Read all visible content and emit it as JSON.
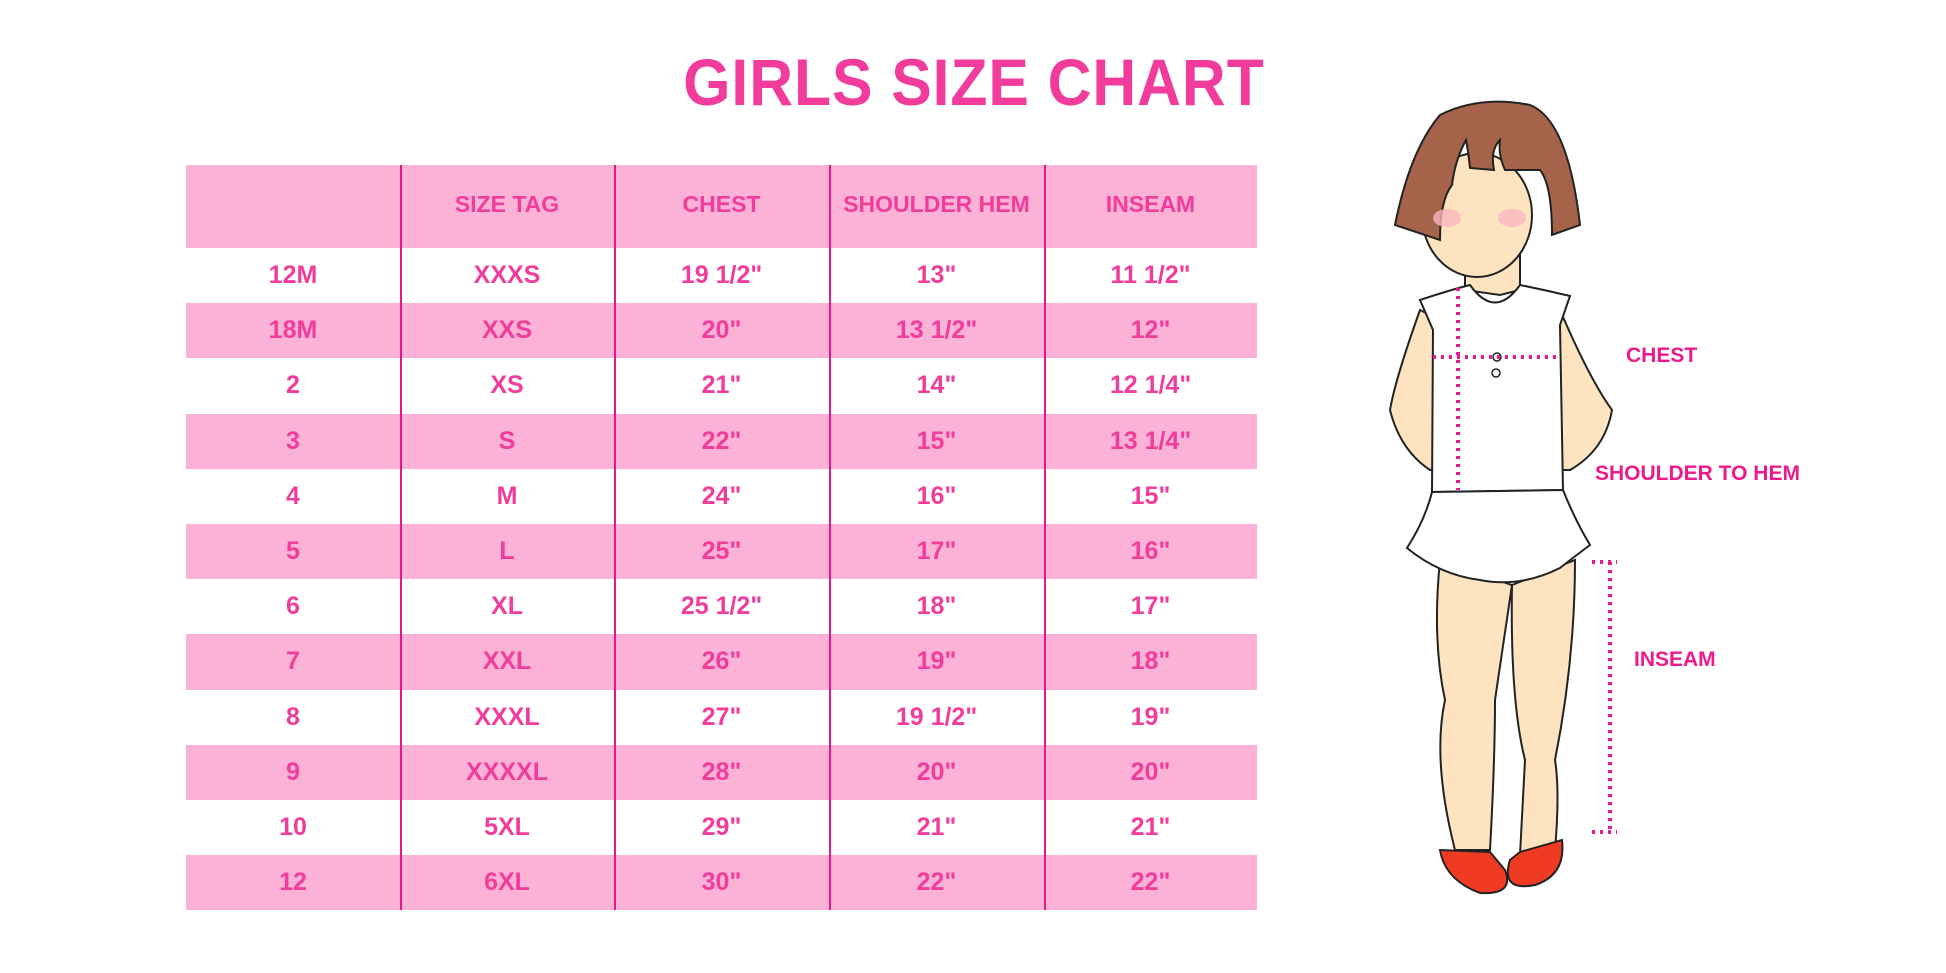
{
  "title": "GIRLS SIZE CHART",
  "table": {
    "headers": [
      "",
      "SIZE TAG",
      "CHEST",
      "SHOULDER HEM",
      "INSEAM"
    ],
    "rows": [
      [
        "12M",
        "XXXS",
        "19 1/2\"",
        "13\"",
        "11 1/2\""
      ],
      [
        "18M",
        "XXS",
        "20\"",
        "13 1/2\"",
        "12\""
      ],
      [
        "2",
        "XS",
        "21\"",
        "14\"",
        "12 1/4\""
      ],
      [
        "3",
        "S",
        "22\"",
        "15\"",
        "13 1/4\""
      ],
      [
        "4",
        "M",
        "24\"",
        "16\"",
        "15\""
      ],
      [
        "5",
        "L",
        "25\"",
        "17\"",
        "16\""
      ],
      [
        "6",
        "XL",
        "25 1/2\"",
        "18\"",
        "17\""
      ],
      [
        "7",
        "XXL",
        "26\"",
        "19\"",
        "18\""
      ],
      [
        "8",
        "XXXL",
        "27\"",
        "19 1/2\"",
        "19\""
      ],
      [
        "9",
        "XXXXL",
        "28\"",
        "20\"",
        "20\""
      ],
      [
        "10",
        "5XL",
        "29\"",
        "21\"",
        "21\""
      ],
      [
        "12",
        "6XL",
        "30\"",
        "22\"",
        "22\""
      ]
    ]
  },
  "diagram": {
    "labels": {
      "chest": "CHEST",
      "shoulder": "SHOULDER TO HEM",
      "inseam": "INSEAM"
    }
  },
  "colors": {
    "accent": "#f23c9b",
    "header_bg": "#fcb1d6",
    "divider": "#e3168a"
  }
}
